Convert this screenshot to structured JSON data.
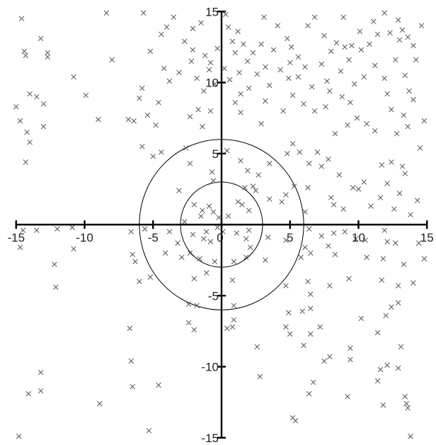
{
  "chart_data": {
    "type": "scatter",
    "title": "",
    "xlabel": "",
    "ylabel": "",
    "xlim": [
      -15,
      15
    ],
    "ylim": [
      -15,
      15
    ],
    "grid": false,
    "legend": "none",
    "marker": "x",
    "marker_color": "#555555",
    "axis_color": "#000000",
    "x_ticks": [
      -15,
      -10,
      -5,
      0,
      5,
      10,
      15
    ],
    "y_ticks": [
      -15,
      -10,
      -5,
      0,
      5,
      10,
      15
    ],
    "x_tick_labels": [
      "-15",
      "-10",
      "-5",
      "0",
      "5",
      "10",
      "15"
    ],
    "y_tick_labels": [
      "-15",
      "-10",
      "-5",
      "0",
      "5",
      "10",
      "15"
    ],
    "circles": [
      {
        "cx": 0,
        "cy": 0,
        "r": 3
      },
      {
        "cx": 0,
        "cy": 0,
        "r": 6
      }
    ],
    "series": [
      {
        "points": [
          [
            -14.6,
            14.5
          ],
          [
            -14.4,
            12.2
          ],
          [
            -14.3,
            11.9
          ],
          [
            -13.2,
            13.1
          ],
          [
            -12.7,
            12.1
          ],
          [
            -12.7,
            11.8
          ],
          [
            -8.4,
            14.9
          ],
          [
            -8.0,
            11.6
          ],
          [
            -5.7,
            14.9
          ],
          [
            -5.2,
            12.2
          ],
          [
            -4.4,
            13.4
          ],
          [
            -4.0,
            13.9
          ],
          [
            -3.5,
            14.6
          ],
          [
            -2.7,
            12.9
          ],
          [
            -2.1,
            13.8
          ],
          [
            -2.1,
            12.3
          ],
          [
            -1.5,
            14.2
          ],
          [
            -1.2,
            11.9
          ],
          [
            -0.8,
            11.4
          ],
          [
            -0.3,
            12.4
          ],
          [
            -14.0,
            9.2
          ],
          [
            -13.5,
            9.0
          ],
          [
            -10.8,
            10.4
          ],
          [
            -9.9,
            9.1
          ],
          [
            -5.8,
            9.6
          ],
          [
            -4.2,
            11.0
          ],
          [
            -3.8,
            10.1
          ],
          [
            -3.1,
            10.7
          ],
          [
            -2.2,
            11.5
          ],
          [
            -1.8,
            10.3
          ],
          [
            -0.9,
            10.9
          ],
          [
            -0.5,
            9.9
          ],
          [
            -1.3,
            9.4
          ],
          [
            -4.6,
            8.6
          ],
          [
            -6.0,
            8.9
          ],
          [
            -13.0,
            8.5
          ],
          [
            -15.0,
            8.3
          ],
          [
            -14.7,
            7.3
          ],
          [
            -14.2,
            6.5
          ],
          [
            -14.0,
            5.8
          ],
          [
            -13.0,
            6.9
          ],
          [
            -9.0,
            7.4
          ],
          [
            -6.8,
            7.4
          ],
          [
            -6.4,
            7.3
          ],
          [
            -5.4,
            7.7
          ],
          [
            -4.8,
            7.0
          ],
          [
            -2.3,
            7.6
          ],
          [
            -1.7,
            8.1
          ],
          [
            -1.4,
            6.9
          ],
          [
            -0.8,
            8.0
          ],
          [
            -5.8,
            5.5
          ],
          [
            -5.0,
            4.8
          ],
          [
            -4.4,
            5.1
          ],
          [
            -2.6,
            5.4
          ],
          [
            -14.3,
            4.4
          ],
          [
            0.3,
            14.8
          ],
          [
            0.5,
            13.9
          ],
          [
            1.2,
            13.6
          ],
          [
            1.6,
            12.7
          ],
          [
            1.0,
            12.1
          ],
          [
            2.3,
            12.1
          ],
          [
            2.9,
            12.7
          ],
          [
            3.8,
            12.3
          ],
          [
            4.1,
            14.0
          ],
          [
            4.8,
            13.1
          ],
          [
            5.1,
            12.5
          ],
          [
            5.6,
            11.8
          ],
          [
            6.3,
            14.0
          ],
          [
            6.8,
            14.6
          ],
          [
            7.5,
            13.3
          ],
          [
            8.0,
            12.2
          ],
          [
            8.4,
            12.8
          ],
          [
            9.0,
            12.5
          ],
          [
            9.5,
            12.6
          ],
          [
            10.2,
            12.3
          ],
          [
            10.8,
            12.7
          ],
          [
            11.4,
            13.4
          ],
          [
            11.9,
            14.9
          ],
          [
            12.3,
            13.5
          ],
          [
            12.9,
            14.4
          ],
          [
            13.2,
            13.7
          ],
          [
            13.6,
            13.2
          ],
          [
            14.0,
            12.6
          ],
          [
            14.6,
            14.0
          ],
          [
            10.1,
            13.6
          ],
          [
            8.9,
            14.6
          ],
          [
            5.0,
            11.4
          ],
          [
            3.1,
            14.6
          ],
          [
            0.8,
            12.9
          ],
          [
            13.0,
            13.0
          ],
          [
            11.1,
            14.3
          ],
          [
            0.2,
            11.0
          ],
          [
            0.6,
            10.2
          ],
          [
            1.3,
            10.7
          ],
          [
            1.9,
            11.5
          ],
          [
            2.6,
            10.6
          ],
          [
            3.2,
            11.1
          ],
          [
            3.5,
            9.8
          ],
          [
            4.3,
            10.9
          ],
          [
            4.9,
            10.3
          ],
          [
            5.6,
            10.4
          ],
          [
            6.1,
            11.1
          ],
          [
            6.6,
            9.7
          ],
          [
            7.3,
            11.3
          ],
          [
            7.7,
            10.1
          ],
          [
            8.7,
            10.8
          ],
          [
            9.3,
            11.6
          ],
          [
            10.4,
            10.4
          ],
          [
            11.2,
            11.2
          ],
          [
            11.9,
            10.3
          ],
          [
            12.7,
            11.6
          ],
          [
            13.4,
            10.5
          ],
          [
            14.2,
            11.6
          ],
          [
            1.4,
            9.2
          ],
          [
            2.0,
            9.6
          ],
          [
            5.2,
            9.1
          ],
          [
            7.9,
            9.4
          ],
          [
            8.8,
            9.0
          ],
          [
            9.7,
            9.9
          ],
          [
            12.1,
            9.2
          ],
          [
            13.7,
            9.4
          ],
          [
            1.0,
            8.6
          ],
          [
            1.4,
            7.9
          ],
          [
            3.2,
            8.7
          ],
          [
            4.5,
            8.0
          ],
          [
            6.0,
            8.5
          ],
          [
            6.8,
            8.0
          ],
          [
            7.6,
            8.3
          ],
          [
            9.4,
            8.6
          ],
          [
            9.9,
            7.5
          ],
          [
            10.6,
            7.1
          ],
          [
            11.2,
            6.6
          ],
          [
            12.4,
            8.1
          ],
          [
            13.3,
            7.7
          ],
          [
            14.0,
            8.8
          ],
          [
            14.8,
            7.3
          ],
          [
            12.8,
            6.4
          ],
          [
            9.2,
            7.0
          ],
          [
            2.9,
            7.1
          ],
          [
            13.6,
            6.9
          ],
          [
            8.3,
            6.4
          ],
          [
            5.2,
            5.7
          ],
          [
            4.8,
            5.0
          ],
          [
            5.7,
            5.1
          ],
          [
            7.0,
            5.1
          ],
          [
            7.3,
            4.1
          ],
          [
            7.8,
            4.6
          ],
          [
            8.6,
            3.5
          ],
          [
            6.4,
            4.3
          ],
          [
            3.5,
            4.3
          ],
          [
            1.4,
            4.5
          ],
          [
            1.9,
            3.8
          ],
          [
            2.7,
            3.5
          ],
          [
            2.3,
            2.7
          ],
          [
            1.7,
            2.6
          ],
          [
            0.4,
            5.2
          ],
          [
            -0.7,
            3.7
          ],
          [
            -0.6,
            3.1
          ],
          [
            -2.3,
            4.3
          ],
          [
            -3.1,
            2.4
          ],
          [
            12.4,
            4.4
          ],
          [
            13.2,
            4.1
          ],
          [
            14.5,
            5.4
          ],
          [
            11.7,
            4.2
          ],
          [
            13.4,
            3.6
          ],
          [
            10.4,
            3.0
          ],
          [
            9.6,
            2.6
          ],
          [
            10.0,
            2.5
          ],
          [
            12.1,
            2.9
          ],
          [
            13.0,
            2.2
          ],
          [
            11.6,
            1.9
          ],
          [
            12.6,
            1.1
          ],
          [
            13.8,
            0.7
          ],
          [
            14.3,
            1.7
          ],
          [
            10.9,
            1.3
          ],
          [
            8.9,
            1.1
          ],
          [
            8.2,
            1.4
          ],
          [
            8.0,
            1.9
          ],
          [
            6.1,
            0.9
          ],
          [
            6.3,
            2.6
          ],
          [
            5.3,
            2.7
          ],
          [
            4.7,
            2.1
          ],
          [
            4.4,
            1.6
          ],
          [
            3.5,
            1.8
          ],
          [
            2.5,
            2.4
          ],
          [
            2.0,
            1.0
          ],
          [
            1.5,
            1.4
          ],
          [
            1.2,
            1.6
          ],
          [
            -2.7,
            0.2
          ],
          [
            -2.0,
            1.4
          ],
          [
            -1.4,
            1.0
          ],
          [
            -0.9,
            1.3
          ],
          [
            -1.5,
            0.6
          ],
          [
            -0.6,
            0.9
          ],
          [
            -0.2,
            0.5
          ],
          [
            -0.3,
            -0.2
          ],
          [
            -1.1,
            -0.5
          ],
          [
            0.5,
            0.6
          ],
          [
            -14.5,
            -0.4
          ],
          [
            -13.5,
            -0.4
          ],
          [
            -12.0,
            -0.3
          ],
          [
            -10.9,
            -0.2
          ],
          [
            -6.6,
            -0.5
          ],
          [
            -5.6,
            -0.3
          ],
          [
            -3.8,
            -0.5
          ],
          [
            -3.2,
            -1.3
          ],
          [
            -2.1,
            -0.7
          ],
          [
            -1.3,
            -1.0
          ],
          [
            -0.8,
            -1.2
          ],
          [
            1.1,
            -0.6
          ],
          [
            2.0,
            -0.4
          ],
          [
            1.8,
            -1.0
          ],
          [
            2.1,
            -1.6
          ],
          [
            3.4,
            -0.9
          ],
          [
            4.7,
            -1.1
          ],
          [
            6.4,
            -0.3
          ],
          [
            6.1,
            -1.6
          ],
          [
            7.3,
            -0.8
          ],
          [
            8.2,
            -0.6
          ],
          [
            9.8,
            -1.0
          ],
          [
            10.5,
            -1.1
          ],
          [
            12.1,
            -1.2
          ],
          [
            12.7,
            -1.3
          ],
          [
            14.4,
            -1.3
          ],
          [
            9.0,
            -0.5
          ],
          [
            11.9,
            -0.4
          ],
          [
            7.8,
            -1.5
          ],
          [
            0.1,
            -0.5
          ],
          [
            -14.7,
            -1.6
          ],
          [
            -12.2,
            -2.8
          ],
          [
            -10.8,
            -1.7
          ],
          [
            -6.5,
            -2.1
          ],
          [
            -6.3,
            -2.6
          ],
          [
            -2.9,
            -2.3
          ],
          [
            -2.3,
            -2.0
          ],
          [
            -1.6,
            -2.4
          ],
          [
            -0.5,
            -2.6
          ],
          [
            -4.1,
            -2.0
          ],
          [
            0.9,
            -2.6
          ],
          [
            1.8,
            -2.3
          ],
          [
            3.2,
            -2.5
          ],
          [
            5.8,
            -2.3
          ],
          [
            6.5,
            -2.0
          ],
          [
            8.3,
            -2.1
          ],
          [
            10.6,
            -2.3
          ],
          [
            11.8,
            -2.4
          ],
          [
            13.3,
            -2.8
          ],
          [
            14.8,
            -2.4
          ],
          [
            -12.1,
            -4.4
          ],
          [
            -6.0,
            -4.0
          ],
          [
            -5.2,
            -3.7
          ],
          [
            -2.0,
            -3.8
          ],
          [
            -1.1,
            -3.4
          ],
          [
            0.8,
            -3.9
          ],
          [
            4.7,
            -4.3
          ],
          [
            6.3,
            -4.0
          ],
          [
            6.5,
            -4.9
          ],
          [
            7.9,
            -4.3
          ],
          [
            9.3,
            -3.8
          ],
          [
            11.7,
            -3.9
          ],
          [
            12.9,
            -4.3
          ],
          [
            14.0,
            -4.1
          ],
          [
            -2.4,
            -5.6
          ],
          [
            -1.8,
            -5.7
          ],
          [
            0.9,
            -5.7
          ],
          [
            4.9,
            -6.2
          ],
          [
            5.9,
            -6.1
          ],
          [
            6.5,
            -5.9
          ],
          [
            12.4,
            -5.8
          ],
          [
            12.9,
            -5.5
          ],
          [
            12.0,
            -6.4
          ],
          [
            -6.7,
            -7.3
          ],
          [
            -2.4,
            -6.9
          ],
          [
            -2.0,
            -7.4
          ],
          [
            0.4,
            -7.3
          ],
          [
            0.9,
            -6.7
          ],
          [
            0.8,
            -7.2
          ],
          [
            4.7,
            -7.2
          ],
          [
            5.0,
            -7.7
          ],
          [
            6.5,
            -7.7
          ],
          [
            7.2,
            -7.2
          ],
          [
            10.2,
            -6.6
          ],
          [
            11.4,
            -7.6
          ],
          [
            2.6,
            -8.6
          ],
          [
            6.0,
            -8.5
          ],
          [
            7.9,
            -9.3
          ],
          [
            7.5,
            -9.6
          ],
          [
            9.4,
            -8.7
          ],
          [
            9.4,
            -9.5
          ],
          [
            13.1,
            -8.6
          ],
          [
            12.1,
            -9.9
          ],
          [
            11.6,
            -10.2
          ],
          [
            12.9,
            -10.1
          ],
          [
            -6.6,
            -9.6
          ],
          [
            -6.5,
            -11.4
          ],
          [
            -13.2,
            -10.4
          ],
          [
            -13.2,
            -11.7
          ],
          [
            -14.1,
            -11.9
          ],
          [
            -4.6,
            -11.3
          ],
          [
            2.8,
            -10.7
          ],
          [
            6.4,
            -11.9
          ],
          [
            6.7,
            -11.1
          ],
          [
            9.2,
            -12.1
          ],
          [
            11.4,
            -11.0
          ],
          [
            11.8,
            -12.7
          ],
          [
            13.4,
            -12.1
          ],
          [
            13.5,
            -12.6
          ],
          [
            13.6,
            -12.9
          ],
          [
            -8.9,
            -12.6
          ],
          [
            -14.8,
            -14.9
          ],
          [
            -5.3,
            -14.5
          ],
          [
            5.2,
            -13.6
          ],
          [
            5.4,
            -13.8
          ],
          [
            13.8,
            -14.9
          ]
        ]
      }
    ]
  }
}
